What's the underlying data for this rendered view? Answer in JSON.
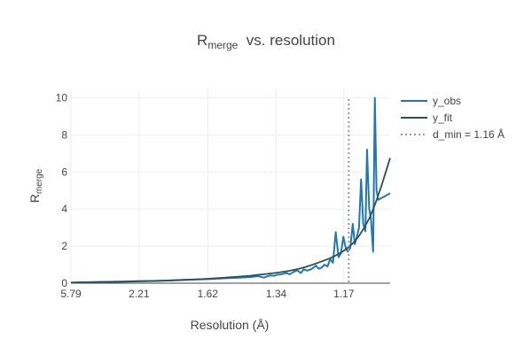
{
  "chart_data": {
    "type": "line",
    "title": "R",
    "title_sub": "merge",
    "title_rest": "  vs. resolution",
    "xlabel": "Resolution (Å)",
    "ylabel": "R",
    "ylabel_sub": "merge",
    "x_scale": "reciprocal-square (1/d²)",
    "x_ticks": [
      {
        "label": "5.79",
        "value": 5.79
      },
      {
        "label": "2.21",
        "value": 2.21
      },
      {
        "label": "1.62",
        "value": 1.62
      },
      {
        "label": "1.34",
        "value": 1.34
      },
      {
        "label": "1.17",
        "value": 1.17
      }
    ],
    "xlim": [
      5.79,
      1.085
    ],
    "ylim": [
      0,
      10.5
    ],
    "y_ticks": [
      0,
      2,
      4,
      6,
      8,
      10
    ],
    "grid": true,
    "legend_position": "top-right outside",
    "colors": {
      "y_obs": "#1f77b4",
      "y_fit": "#2f4f4f",
      "d_min": "#999999"
    },
    "series": [
      {
        "name": "y_obs",
        "x": [
          5.79,
          4.0,
          3.0,
          2.5,
          2.21,
          2.0,
          1.85,
          1.75,
          1.68,
          1.62,
          1.56,
          1.51,
          1.47,
          1.43,
          1.4,
          1.38,
          1.36,
          1.345,
          1.34,
          1.325,
          1.31,
          1.3,
          1.29,
          1.28,
          1.27,
          1.262,
          1.255,
          1.247,
          1.24,
          1.232,
          1.225,
          1.218,
          1.212,
          1.205,
          1.199,
          1.193,
          1.187,
          1.181,
          1.176,
          1.171,
          1.166,
          1.162,
          1.157,
          1.152,
          1.148,
          1.144,
          1.14,
          1.136,
          1.132,
          1.128,
          1.125,
          1.121,
          1.118,
          1.114,
          1.111,
          1.108,
          1.105,
          1.102,
          1.099,
          1.085
        ],
        "y": [
          0.03,
          0.04,
          0.06,
          0.08,
          0.1,
          0.12,
          0.15,
          0.18,
          0.2,
          0.22,
          0.25,
          0.28,
          0.3,
          0.33,
          0.38,
          0.3,
          0.42,
          0.4,
          0.45,
          0.48,
          0.55,
          0.48,
          0.6,
          0.7,
          0.55,
          0.75,
          0.68,
          0.72,
          0.8,
          0.95,
          0.78,
          0.85,
          1.0,
          0.9,
          1.3,
          1.1,
          2.75,
          1.4,
          1.6,
          2.5,
          1.9,
          1.7,
          1.9,
          3.2,
          2.1,
          2.5,
          3.0,
          5.6,
          3.2,
          2.8,
          7.2,
          4.0,
          3.5,
          1.7,
          10.0,
          5.0,
          4.5,
          4.55,
          4.6,
          4.85
        ]
      },
      {
        "name": "y_fit",
        "x": [
          5.79,
          4.0,
          3.0,
          2.5,
          2.21,
          2.0,
          1.85,
          1.75,
          1.68,
          1.62,
          1.56,
          1.51,
          1.47,
          1.43,
          1.4,
          1.37,
          1.34,
          1.31,
          1.28,
          1.26,
          1.24,
          1.22,
          1.2,
          1.185,
          1.17,
          1.16,
          1.15,
          1.14,
          1.13,
          1.12,
          1.11,
          1.1,
          1.085
        ],
        "y": [
          0.03,
          0.05,
          0.07,
          0.09,
          0.11,
          0.13,
          0.16,
          0.19,
          0.21,
          0.24,
          0.28,
          0.32,
          0.36,
          0.4,
          0.45,
          0.5,
          0.56,
          0.64,
          0.75,
          0.86,
          1.0,
          1.16,
          1.34,
          1.52,
          1.75,
          1.95,
          2.2,
          2.55,
          3.0,
          3.55,
          4.3,
          5.2,
          6.75
        ]
      }
    ],
    "reference_line": {
      "name": "d_min = 1.16 Å",
      "x": 1.16,
      "style": "dotted"
    }
  }
}
